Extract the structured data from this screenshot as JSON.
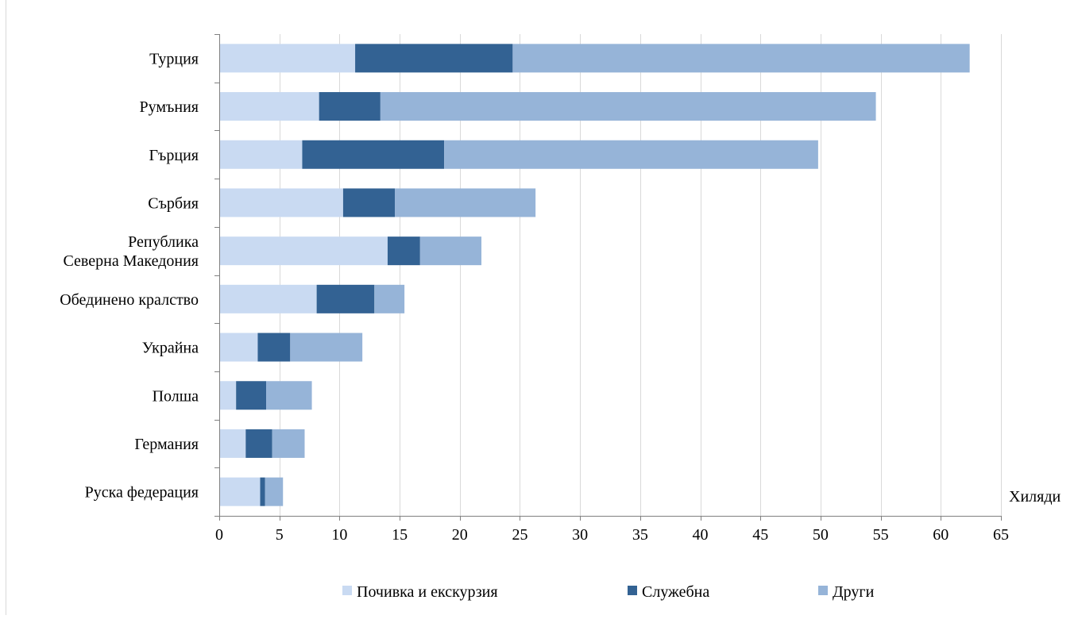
{
  "chart_data": {
    "type": "bar",
    "orientation": "horizontal",
    "stacked": true,
    "title": "",
    "xlabel": "Хиляди",
    "ylabel": "",
    "xlim": [
      0,
      65
    ],
    "x_ticks": [
      0,
      5,
      10,
      15,
      20,
      25,
      30,
      35,
      40,
      45,
      50,
      55,
      60,
      65
    ],
    "grid": true,
    "legend_position": "bottom",
    "categories": [
      [
        "Турция"
      ],
      [
        "Румъния"
      ],
      [
        "Гърция"
      ],
      [
        "Сърбия"
      ],
      [
        "Република",
        "Северна Македония"
      ],
      [
        "Обединено кралство"
      ],
      [
        "Украйна"
      ],
      [
        "Полша"
      ],
      [
        "Германия"
      ],
      [
        "Руска федерация"
      ]
    ],
    "series": [
      {
        "name": "Почивка и екскурзия",
        "color": "#c9daf2",
        "values": [
          11.3,
          8.3,
          6.9,
          10.3,
          14.0,
          8.1,
          3.2,
          1.4,
          2.2,
          3.4
        ]
      },
      {
        "name": "Служебна",
        "color": "#336293",
        "values": [
          13.1,
          5.1,
          11.8,
          4.3,
          2.7,
          4.8,
          2.7,
          2.5,
          2.2,
          0.4
        ]
      },
      {
        "name": "Други",
        "color": "#96b4d8",
        "values": [
          38.0,
          41.2,
          31.1,
          11.7,
          5.1,
          2.5,
          6.0,
          3.8,
          2.7,
          1.5
        ]
      }
    ]
  }
}
